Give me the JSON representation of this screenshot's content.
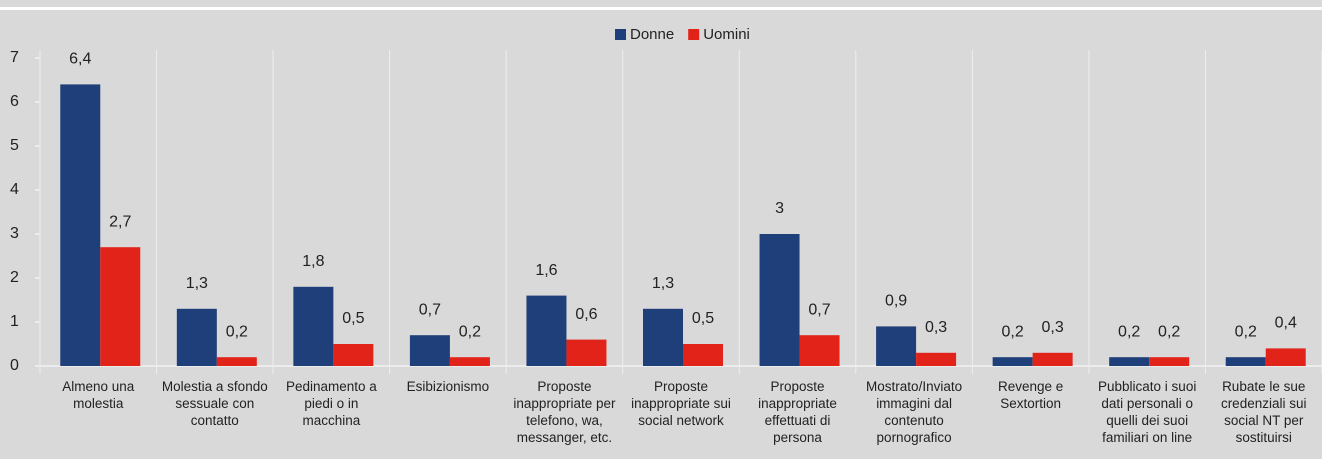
{
  "chart_data": {
    "type": "bar",
    "categories": [
      "Almeno una molestia",
      "Molestia a sfondo sessuale con contatto",
      "Pedinamento a piedi o in macchina",
      "Esibizionismo",
      "Proposte inappropriate per telefono, wa, messanger, etc.",
      "Proposte inappropriate sui social network",
      "Proposte inappropriate effettuati di persona",
      "Mostrato/Inviato immagini dal contenuto pornografico",
      "Revenge e Sextortion",
      "Pubblicato i suoi dati personali o quelli dei suoi familiari on line",
      "Rubate le sue credenziali sui social NT per sostituirsi"
    ],
    "series": [
      {
        "name": "Donne",
        "color": "#1f3f7a",
        "values": [
          6.4,
          1.3,
          1.8,
          0.7,
          1.6,
          1.3,
          3,
          0.9,
          0.2,
          0.2,
          0.2
        ],
        "value_labels": [
          "6,4",
          "1,3",
          "1,8",
          "0,7",
          "1,6",
          "1,3",
          "3",
          "0,9",
          "0,2",
          "0,2",
          "0,2"
        ]
      },
      {
        "name": "Uomini",
        "color": "#e2231a",
        "values": [
          2.7,
          0.2,
          0.5,
          0.2,
          0.6,
          0.5,
          0.7,
          0.3,
          0.3,
          0.2,
          0.4
        ],
        "value_labels": [
          "2,7",
          "0,2",
          "0,5",
          "0,2",
          "0,6",
          "0,5",
          "0,7",
          "0,3",
          "0,3",
          "0,2",
          "0,4"
        ]
      }
    ],
    "ylim": [
      0,
      7
    ],
    "yticks": [
      0,
      1,
      2,
      3,
      4,
      5,
      6,
      7
    ],
    "legend": "top"
  }
}
